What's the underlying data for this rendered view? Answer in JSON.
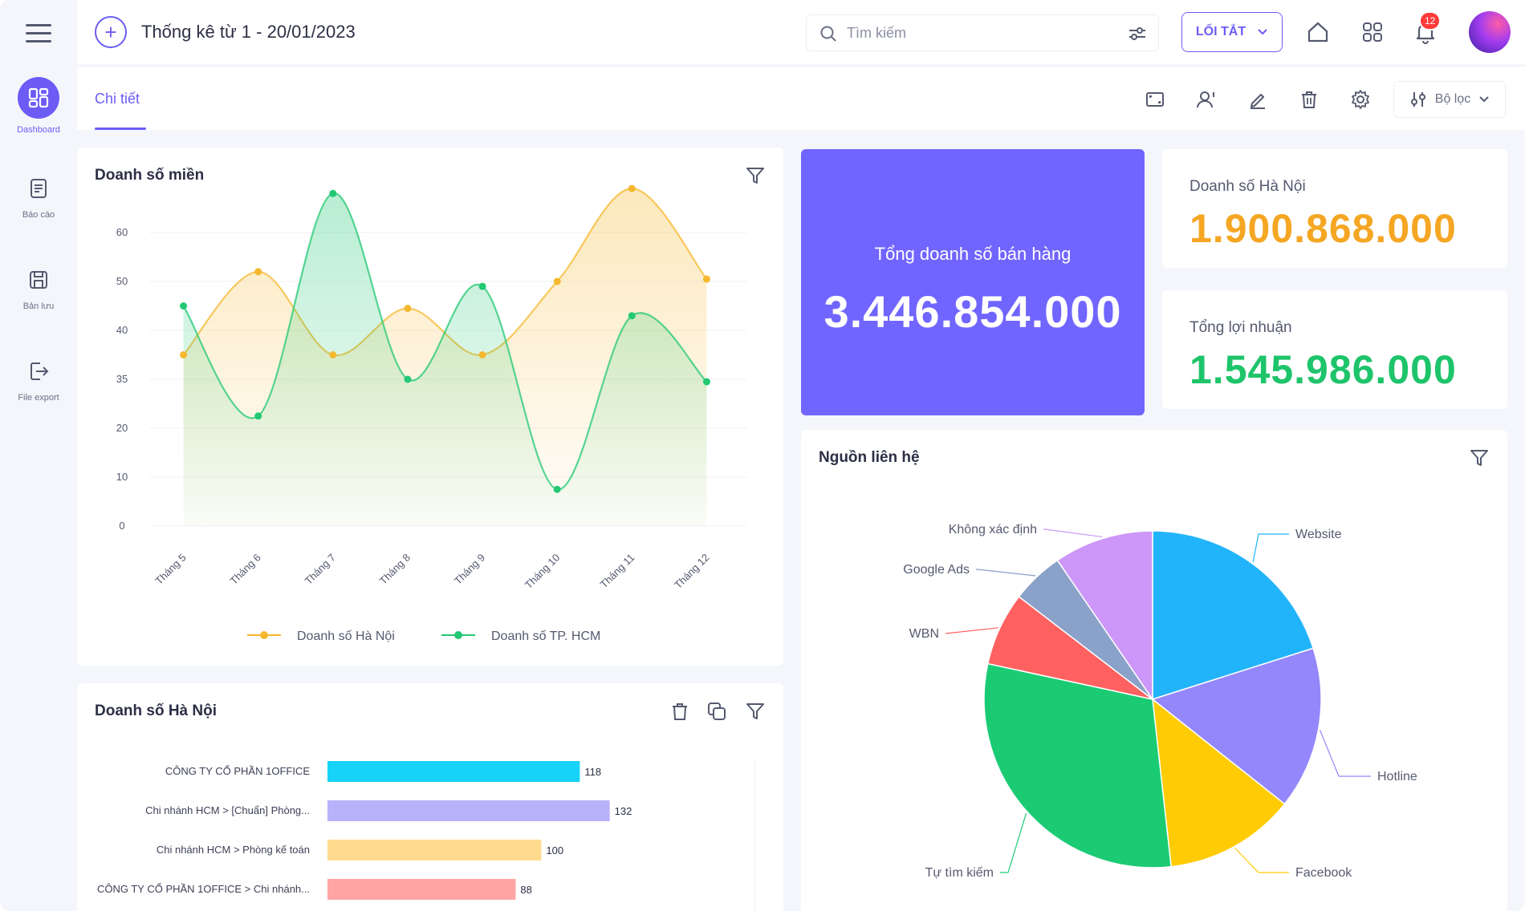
{
  "sidebar": {
    "items": [
      {
        "label": "Dashboard",
        "icon": "dashboard-icon",
        "active": true
      },
      {
        "label": "Báo cáo",
        "icon": "report-icon"
      },
      {
        "label": "Bản lưu",
        "icon": "save-icon"
      },
      {
        "label": "File export",
        "icon": "export-icon"
      }
    ]
  },
  "header": {
    "title": "Thống kê từ 1 - 20/01/2023",
    "search_placeholder": "Tìm kiếm",
    "shortcut_label": "LỐI TẮT",
    "notification_count": "12"
  },
  "subheader": {
    "tab_label": "Chi tiết",
    "filter_label": "Bộ lọc"
  },
  "colors": {
    "accent": "#6c5cf5",
    "hanoi": "#f5b82e",
    "hcm": "#22c873",
    "kpi_hanoi": "#f5a623",
    "kpi_profit": "#1ec46a"
  },
  "kpis": {
    "total_label": "Tổng doanh số bán hàng",
    "total_value": "3.446.854.000",
    "hanoi_label": "Doanh số Hà Nội",
    "hanoi_value": "1.900.868.000",
    "profit_label": "Tổng lợi nhuận",
    "profit_value": "1.545.986.000"
  },
  "line_card": {
    "title": "Doanh số miền"
  },
  "pie_card": {
    "title": "Nguồn liên hệ"
  },
  "bar_card": {
    "title": "Doanh số Hà Nội"
  },
  "chart_data": [
    {
      "type": "line",
      "title": "Doanh số miền",
      "categories": [
        "Tháng 5",
        "Tháng 6",
        "Tháng 7",
        "Tháng 8",
        "Tháng 9",
        "Tháng 10",
        "Tháng 11",
        "Tháng 12"
      ],
      "y_ticks": [
        "0",
        "10",
        "20",
        "35",
        "40",
        "50",
        "60"
      ],
      "series": [
        {
          "name": "Doanh số Hà Nội",
          "values": [
            3.5,
            5.2,
            3.5,
            4.45,
            3.5,
            5.0,
            6.9,
            5.05
          ]
        },
        {
          "name": "Doanh số TP. HCM",
          "values": [
            4.5,
            2.25,
            6.8,
            3.0,
            4.9,
            0.75,
            4.3,
            2.95
          ]
        }
      ],
      "ylim": [
        0,
        6
      ],
      "legend": "bottom",
      "grid": true
    },
    {
      "type": "pie",
      "title": "Nguồn liên hệ",
      "labels": [
        "Website",
        "Hotline",
        "Facebook",
        "Tự tìm kiếm",
        "WBN",
        "Google Ads",
        "Không xác định"
      ],
      "values": [
        20,
        15.5,
        12.5,
        30,
        7,
        5,
        9.5
      ],
      "colors": [
        "#22b4fb",
        "#9387fb",
        "#fecb05",
        "#1bcb74",
        "#ff6161",
        "#8aa1c9",
        "#cc97f8"
      ],
      "legend": "callout-labels"
    },
    {
      "type": "bar",
      "orientation": "horizontal",
      "title": "Doanh số Hà Nội",
      "categories": [
        "CÔNG TY CỔ PHẦN 1OFFICE",
        "Chi nhánh HCM > [Chuẩn] Phòng...",
        "Chi nhánh HCM > Phòng kế toán",
        "CÔNG TY CỔ PHẦN 1OFFICE > Chi nhánh..."
      ],
      "values": [
        118,
        132,
        100,
        88
      ],
      "data_labels": [
        "118",
        "132",
        "100",
        "88"
      ],
      "colors": [
        "#16d3f7",
        "#b8b2fb",
        "#fedb8e",
        "#ffa4a4"
      ],
      "xlim": [
        0,
        200
      ]
    }
  ]
}
